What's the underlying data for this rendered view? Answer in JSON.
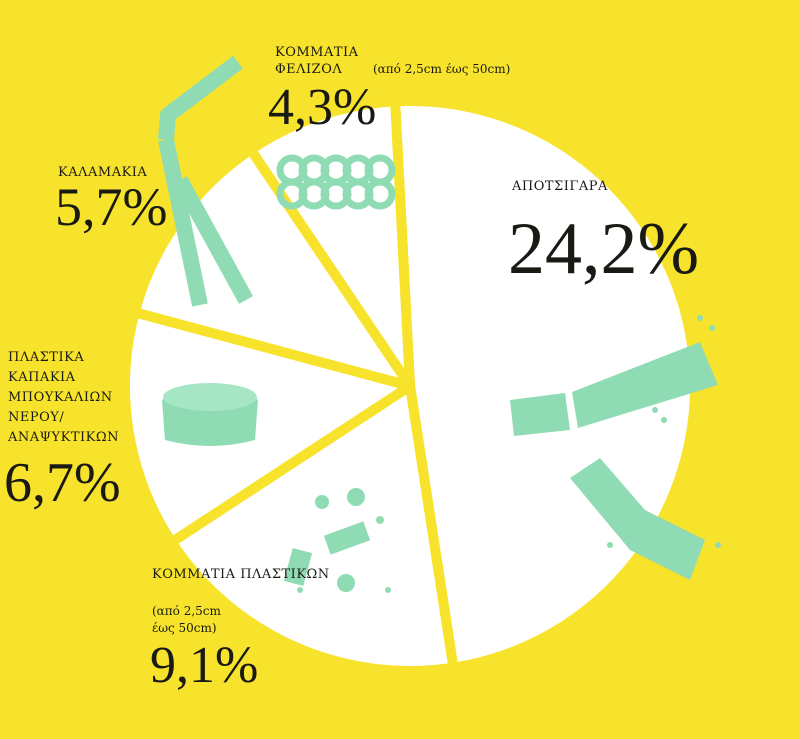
{
  "chart_data": {
    "type": "pie",
    "slices": [
      {
        "label": "ΑΠΟΤΣΙΓΑΡΑ",
        "value": 24.2,
        "display": "24,2%",
        "icon": "cigarette-butts"
      },
      {
        "label": "ΚΟΜΜΑΤΙΑ ΠΛΑΣΤΙΚΩΝ",
        "note": "(από 2,5cm\nέως 50cm)",
        "value": 9.1,
        "display": "9,1%",
        "icon": "plastic-pieces"
      },
      {
        "label": "ΠΛΑΣΤΙΚΑ\nΚΑΠΑΚΙΑ\nΜΠΟΥΚΑΛΙΩΝ\nΝΕΡΟΥ/\nΑΝΑΨΥΚΤΙΚΩΝ",
        "value": 6.7,
        "display": "6,7%",
        "icon": "bottle-cap"
      },
      {
        "label": "ΚΑΛΑΜΑΚΙΑ",
        "value": 5.7,
        "display": "5,7%",
        "icon": "straw"
      },
      {
        "label": "ΚΟΜΜΑΤΙΑ\nΦΕΛΙΖΟΛ",
        "note": "(από 2,5cm έως 50cm)",
        "value": 4.3,
        "display": "4,3%",
        "icon": "styrofoam"
      }
    ],
    "colors": {
      "background": "#f8e32c",
      "slice": "#ffffff",
      "icon": "#8fdcb4",
      "text": "#1a1a14"
    }
  }
}
